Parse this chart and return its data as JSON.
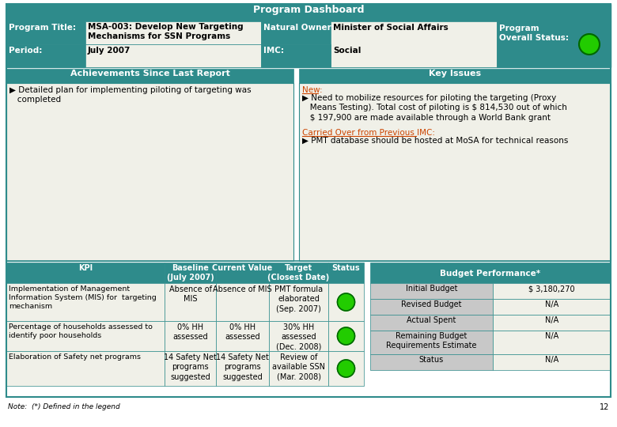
{
  "title": "Program Dashboard",
  "teal": "#2e8b8b",
  "white": "#ffffff",
  "light_bg": "#f0f0e8",
  "gray_bg": "#c8c8c8",
  "border": "#2e8b8b",
  "orange": "#cc4400",
  "green": "#22cc00",
  "dark_green": "#006600",
  "black": "#000000",
  "program_title_label": "Program Title:",
  "program_title_value": "MSA-003: Develop New Targeting\nMechanisms for SSN Programs",
  "natural_owner_label": "Natural Owner:",
  "natural_owner_value": "Minister of Social Affairs",
  "program_overall_status_label": "Program\nOverall Status:",
  "period_label": "Period:",
  "period_value": "July 2007",
  "imc_label": "IMC:",
  "imc_value": "Social",
  "achievements_header": "Achievements Since Last Report",
  "achievements_text": "▶ Detailed plan for implementing piloting of targeting was\n   completed",
  "key_issues_header": "Key Issues",
  "key_issues_new_label": "New:",
  "key_issues_new_text": "▶ Need to mobilize resources for piloting the targeting (Proxy\n   Means Testing). Total cost of piloting is $ 814,530 out of which\n   $ 197,900 are made available through a World Bank grant",
  "key_issues_carried_label": "Carried Over from Previous IMC:",
  "key_issues_carried_text": "▶ PMT database should be hosted at MoSA for technical reasons",
  "kpi_header": "KPI",
  "baseline_header": "Baseline\n(July 2007)",
  "current_value_header": "Current Value",
  "target_header": "Target\n(Closest Date)",
  "status_header": "Status",
  "budget_header": "Budget Performance*",
  "kpi_rows": [
    {
      "kpi": "Implementation of Management\nInformation System (MIS) for  targeting\nmechanism",
      "baseline": "Absence of\nMIS",
      "current": "Absence of MIS",
      "target": "PMT formula\nelaborated\n(Sep. 2007)",
      "status": "green"
    },
    {
      "kpi": "Percentage of households assessed to\nidentify poor households",
      "baseline": "0% HH\nassessed",
      "current": "0% HH\nassessed",
      "target": "30% HH\nassessed\n(Dec. 2008)",
      "status": "green"
    },
    {
      "kpi": "Elaboration of Safety net programs",
      "baseline": "14 Safety Net\nprograms\nsuggested",
      "current": "14 Safety Net\nprograms\nsuggested",
      "target": "Review of\navailable SSN\n(Mar. 2008)",
      "status": "green"
    }
  ],
  "budget_rows": [
    {
      "label": "Initial Budget",
      "value": "$ 3,180,270"
    },
    {
      "label": "Revised Budget",
      "value": "N/A"
    },
    {
      "label": "Actual Spent",
      "value": "N/A"
    },
    {
      "label": "Remaining Budget\nRequirements Estimate",
      "value": "N/A"
    },
    {
      "label": "Status",
      "value": "N/A"
    }
  ],
  "note_text": "Note:  (*) Defined in the legend",
  "page_number": "12"
}
